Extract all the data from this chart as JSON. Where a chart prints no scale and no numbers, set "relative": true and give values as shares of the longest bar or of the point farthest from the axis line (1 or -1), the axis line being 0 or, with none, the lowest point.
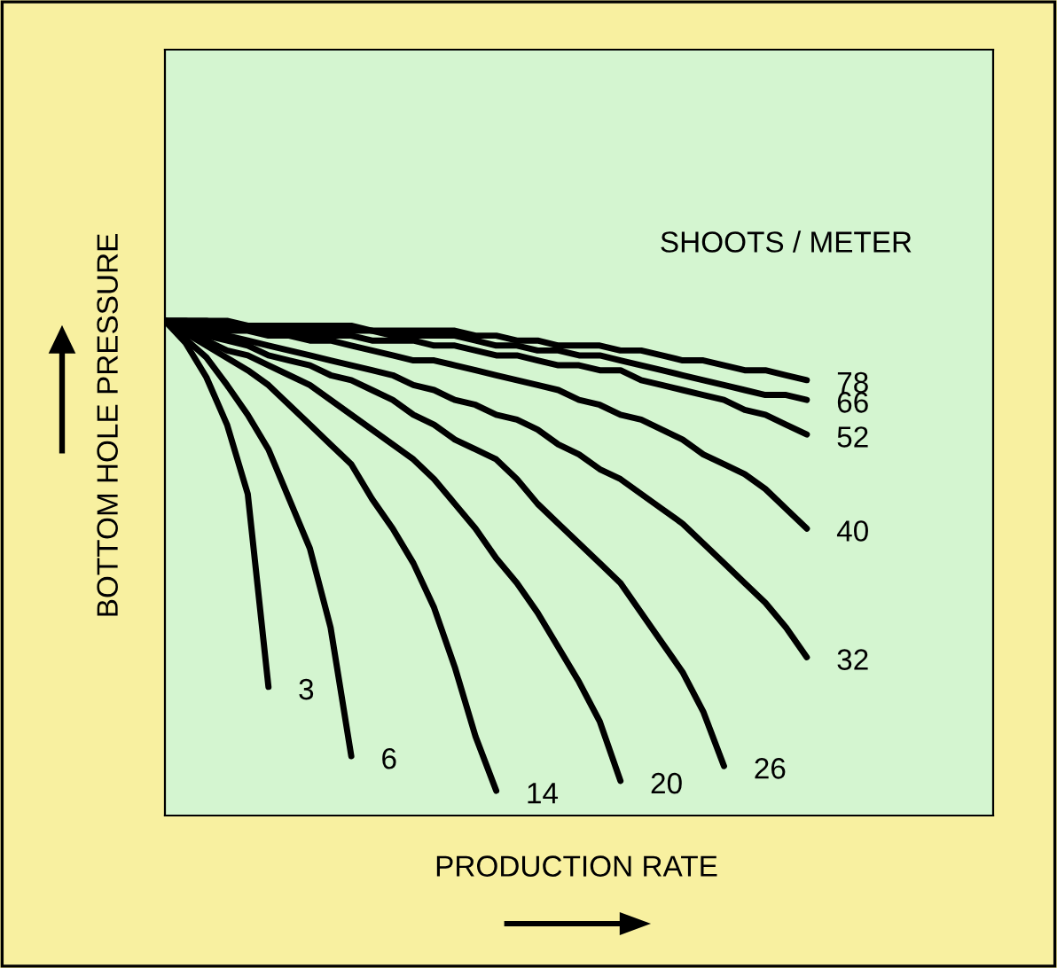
{
  "chart_data": {
    "type": "line",
    "relative": true,
    "xlabel": "PRODUCTION RATE",
    "ylabel": "BOTTOM HOLE PRESSURE",
    "annotations": [
      "SHOOTS / METER"
    ],
    "line_style": "solid",
    "categories": [
      null,
      null,
      null,
      null,
      null,
      null,
      null,
      null,
      null,
      null,
      null,
      null,
      null,
      null,
      null,
      null,
      null,
      null,
      null,
      null,
      null,
      null,
      null,
      null,
      null,
      null,
      null,
      null,
      null,
      null,
      null,
      null,
      null,
      null,
      null,
      null,
      null,
      null,
      null,
      null,
      null
    ],
    "series": [
      {
        "name": "3",
        "color": "#000000",
        "values": [
          1,
          0.955,
          0.886,
          0.79,
          0.65,
          0.26,
          null,
          null,
          null,
          null,
          null,
          null,
          null,
          null,
          null,
          null,
          null,
          null,
          null,
          null,
          null,
          null,
          null,
          null,
          null,
          null,
          null,
          null,
          null,
          null,
          null,
          null,
          null,
          null,
          null,
          null,
          null,
          null,
          null,
          null,
          null
        ]
      },
      {
        "name": "6",
        "color": "#000000",
        "values": [
          1,
          0.963,
          0.926,
          0.87,
          0.81,
          0.74,
          0.64,
          0.54,
          0.38,
          0.12,
          null,
          null,
          null,
          null,
          null,
          null,
          null,
          null,
          null,
          null,
          null,
          null,
          null,
          null,
          null,
          null,
          null,
          null,
          null,
          null,
          null,
          null,
          null,
          null,
          null,
          null,
          null,
          null,
          null,
          null,
          null
        ]
      },
      {
        "name": "14",
        "color": "#000000",
        "values": [
          1,
          0.975,
          0.95,
          0.925,
          0.9,
          0.87,
          0.83,
          0.79,
          0.75,
          0.71,
          0.64,
          0.58,
          0.51,
          0.42,
          0.3,
          0.16,
          0.05,
          null,
          null,
          null,
          null,
          null,
          null,
          null,
          null,
          null,
          null,
          null,
          null,
          null,
          null,
          null,
          null,
          null,
          null,
          null,
          null,
          null,
          null,
          null,
          null
        ]
      },
      {
        "name": "20",
        "color": "#000000",
        "values": [
          1,
          0.98,
          0.96,
          0.94,
          0.93,
          0.91,
          0.89,
          0.87,
          0.84,
          0.81,
          0.78,
          0.75,
          0.72,
          0.68,
          0.63,
          0.58,
          0.52,
          0.47,
          0.41,
          0.34,
          0.27,
          0.19,
          0.07,
          null,
          null,
          null,
          null,
          null,
          null,
          null,
          null,
          null,
          null,
          null,
          null,
          null,
          null,
          null,
          null,
          null,
          null
        ]
      },
      {
        "name": "26",
        "color": "#000000",
        "values": [
          1,
          0.99,
          0.97,
          0.96,
          0.95,
          0.93,
          0.92,
          0.91,
          0.89,
          0.88,
          0.86,
          0.84,
          0.81,
          0.79,
          0.76,
          0.74,
          0.72,
          0.68,
          0.63,
          0.59,
          0.55,
          0.51,
          0.47,
          0.41,
          0.35,
          0.29,
          0.21,
          0.1,
          null,
          null,
          null,
          null,
          null,
          null,
          null,
          null,
          null,
          null,
          null,
          null,
          null
        ]
      },
      {
        "name": "32",
        "color": "#000000",
        "values": [
          1,
          0.99,
          0.98,
          0.97,
          0.96,
          0.95,
          0.94,
          0.93,
          0.92,
          0.91,
          0.9,
          0.89,
          0.87,
          0.86,
          0.84,
          0.83,
          0.81,
          0.8,
          0.78,
          0.75,
          0.73,
          0.7,
          0.68,
          0.65,
          0.62,
          0.59,
          0.55,
          0.51,
          0.47,
          0.43,
          0.38,
          0.32,
          null,
          null,
          null,
          null,
          null,
          null,
          null,
          null,
          null
        ]
      },
      {
        "name": "40",
        "color": "#000000",
        "values": [
          1,
          0.995,
          0.99,
          0.98,
          0.98,
          0.97,
          0.97,
          0.96,
          0.96,
          0.95,
          0.94,
          0.93,
          0.92,
          0.92,
          0.91,
          0.9,
          0.89,
          0.88,
          0.87,
          0.86,
          0.84,
          0.83,
          0.81,
          0.8,
          0.78,
          0.76,
          0.73,
          0.71,
          0.69,
          0.66,
          0.62,
          0.58,
          null,
          null,
          null,
          null,
          null,
          null,
          null,
          null,
          null
        ]
      },
      {
        "name": "52",
        "color": "#000000",
        "values": [
          1,
          1,
          0.99,
          0.99,
          0.99,
          0.98,
          0.98,
          0.97,
          0.97,
          0.97,
          0.96,
          0.96,
          0.96,
          0.95,
          0.95,
          0.94,
          0.93,
          0.93,
          0.92,
          0.91,
          0.91,
          0.9,
          0.9,
          0.88,
          0.87,
          0.86,
          0.85,
          0.84,
          0.82,
          0.81,
          0.79,
          0.77,
          null,
          null,
          null,
          null,
          null,
          null,
          null,
          null,
          null
        ]
      },
      {
        "name": "66",
        "color": "#000000",
        "values": [
          1,
          1,
          1,
          0.99,
          0.99,
          0.99,
          0.99,
          0.98,
          0.98,
          0.98,
          0.98,
          0.97,
          0.97,
          0.97,
          0.97,
          0.96,
          0.95,
          0.95,
          0.94,
          0.94,
          0.93,
          0.93,
          0.92,
          0.91,
          0.9,
          0.89,
          0.88,
          0.87,
          0.86,
          0.85,
          0.85,
          0.84,
          null,
          null,
          null,
          null,
          null,
          null,
          null,
          null,
          null
        ]
      },
      {
        "name": "78",
        "color": "#000000",
        "values": [
          1,
          1,
          1,
          1,
          0.99,
          0.99,
          0.99,
          0.99,
          0.99,
          0.99,
          0.98,
          0.98,
          0.98,
          0.98,
          0.98,
          0.97,
          0.97,
          0.96,
          0.96,
          0.95,
          0.95,
          0.95,
          0.94,
          0.94,
          0.93,
          0.92,
          0.92,
          0.91,
          0.9,
          0.9,
          0.89,
          0.88,
          null,
          null,
          null,
          null,
          null,
          null,
          null,
          null,
          null
        ]
      }
    ]
  }
}
